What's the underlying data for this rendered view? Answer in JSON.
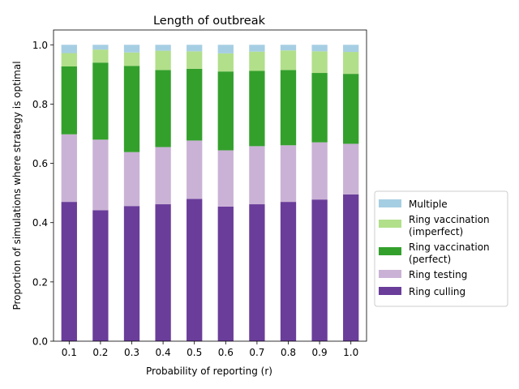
{
  "chart_data": {
    "type": "bar",
    "stacked": true,
    "title": "Length of outbreak",
    "xlabel": "Probability of reporting (r)",
    "ylabel": "Proportion of simulations where strategy is optimal",
    "ylim": [
      0,
      1.05
    ],
    "yticks": [
      "0.0",
      "0.2",
      "0.4",
      "0.6",
      "0.8",
      "1.0"
    ],
    "categories": [
      "0.1",
      "0.2",
      "0.3",
      "0.4",
      "0.5",
      "0.6",
      "0.7",
      "0.8",
      "0.9",
      "1.0"
    ],
    "legend_position": "right",
    "series": [
      {
        "name": "Ring culling",
        "color": "#6a3d9a",
        "values": [
          0.47,
          0.442,
          0.456,
          0.462,
          0.48,
          0.454,
          0.462,
          0.47,
          0.478,
          0.495
        ]
      },
      {
        "name": "Ring testing",
        "color": "#cab2d6",
        "values": [
          0.228,
          0.238,
          0.182,
          0.193,
          0.197,
          0.19,
          0.196,
          0.191,
          0.193,
          0.171
        ]
      },
      {
        "name": "Ring vaccination\n(perfect)",
        "color": "#33a02c",
        "values": [
          0.229,
          0.26,
          0.291,
          0.26,
          0.242,
          0.266,
          0.254,
          0.254,
          0.234,
          0.236
        ]
      },
      {
        "name": "Ring vaccination\n(imperfect)",
        "color": "#b2df8a",
        "values": [
          0.045,
          0.044,
          0.045,
          0.065,
          0.059,
          0.061,
          0.065,
          0.066,
          0.073,
          0.074
        ]
      },
      {
        "name": "Multiple",
        "color": "#a6cee3",
        "values": [
          0.028,
          0.016,
          0.026,
          0.02,
          0.022,
          0.029,
          0.023,
          0.019,
          0.022,
          0.024
        ]
      }
    ],
    "legend_order": [
      "Multiple",
      "Ring vaccination\n(imperfect)",
      "Ring vaccination\n(perfect)",
      "Ring testing",
      "Ring culling"
    ]
  }
}
